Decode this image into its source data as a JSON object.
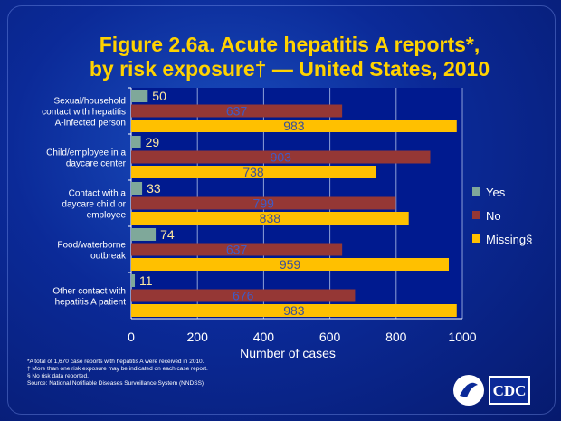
{
  "title_line1": "Figure 2.6a.  Acute hepatitis A reports*,",
  "title_line2": "by risk exposure† — United States, 2010",
  "chart_data": {
    "type": "bar",
    "orientation": "horizontal",
    "categories": [
      "Sexual/household contact with hepatitis A-infected person",
      "Child/employee in a daycare center",
      "Contact with a daycare child or employee",
      "Food/waterborne outbreak",
      "Other contact with hepatitis A patient"
    ],
    "category_lines": [
      [
        "Sexual/household",
        "contact with hepatitis",
        "A-infected person"
      ],
      [
        "Child/employee in a",
        "daycare center"
      ],
      [
        "Contact with a",
        "daycare child or",
        "employee"
      ],
      [
        "Food/waterborne",
        "outbreak"
      ],
      [
        "Other contact with",
        "hepatitis A patient"
      ]
    ],
    "series": [
      {
        "name": "Yes",
        "color": "#7fa89a",
        "values": [
          50,
          29,
          33,
          74,
          11
        ]
      },
      {
        "name": "No",
        "color": "#953735",
        "values": [
          637,
          903,
          799,
          637,
          676
        ]
      },
      {
        "name": "Missing§",
        "color": "#ffc000",
        "values": [
          983,
          738,
          838,
          959,
          983
        ]
      }
    ],
    "xlabel": "Number of cases",
    "xlim": [
      0,
      1000
    ],
    "xticks": [
      0,
      200,
      400,
      600,
      800,
      1000
    ],
    "grid": true,
    "legend": "right"
  },
  "footnotes": [
    "*A total of 1,670 case reports with hepatitis A were received in 2010.",
    "† More than one risk exposure may be indicated on each case report.",
    "§ No risk data reported.",
    "Source: National Notifiable Diseases Surveillance System (NNDSS)"
  ],
  "logo_text": "CDC"
}
